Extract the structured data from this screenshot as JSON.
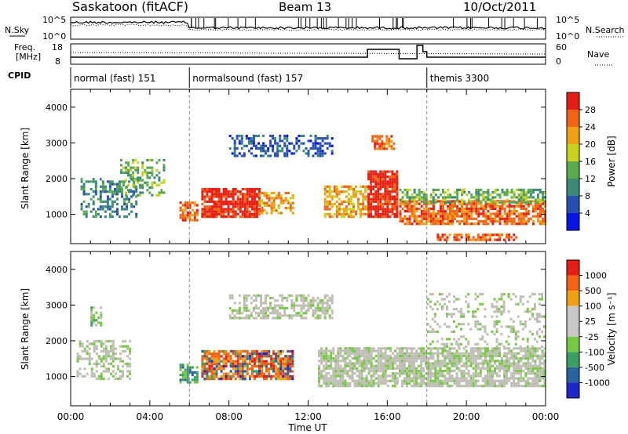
{
  "header": {
    "title": "Saskatoon (fitACF)",
    "beam": "Beam 13",
    "date": "10/Oct/2011"
  },
  "top_panels": {
    "nsky_label": "N.Sky",
    "nsky_ticks": [
      "10^5",
      "10^0"
    ],
    "nsearch_label": "N.Search",
    "nsearch_ticks": [
      "10^5",
      "10^0"
    ],
    "freq_label_1": "Freq.",
    "freq_label_2": "[MHz]",
    "freq_ticks": [
      "18",
      "8"
    ],
    "nave_label": "Nave",
    "nave_ticks": [
      "60",
      "0"
    ],
    "cpid_label": "CPID",
    "cpid_segments": [
      {
        "label": "normal (fast) 151",
        "start_hour": 0
      },
      {
        "label": "normalsound (fast) 157",
        "start_hour": 6
      },
      {
        "label": "themis 3300",
        "start_hour": 18
      }
    ]
  },
  "colors": {
    "power_scale": [
      "#0a14e6",
      "#2850b4",
      "#3c8a78",
      "#5aaa50",
      "#c8d21e",
      "#f0a014",
      "#f06414",
      "#e61e14"
    ],
    "velocity_scale": [
      "#1e28c8",
      "#2864a0",
      "#3ca064",
      "#78c846",
      "#c8c8c8",
      "#c8c8c8",
      "#f0a014",
      "#f06414",
      "#e61e14"
    ],
    "ground_scatter": "#bebeb4"
  },
  "chart_data": [
    {
      "type": "heatmap",
      "name": "power",
      "ylabel": "Slant Range [km]",
      "xlabel": "Time UT",
      "x_ticks": [
        "00:00",
        "04:00",
        "08:00",
        "12:00",
        "16:00",
        "20:00",
        "00:00"
      ],
      "xlim_hours": [
        0,
        24
      ],
      "ylim_km": [
        180,
        4500
      ],
      "y_ticks": [
        1000,
        2000,
        3000,
        4000
      ],
      "colorbar_label": "Power [dB]",
      "colorbar_ticks": [
        "28",
        "24",
        "20",
        "16",
        "12",
        "8",
        "4"
      ],
      "regions": [
        {
          "t0": 0.5,
          "t1": 3.3,
          "r0": 900,
          "r1": 2000,
          "level": 2,
          "density": 0.45
        },
        {
          "t0": 2.5,
          "t1": 4.7,
          "r0": 1500,
          "r1": 2500,
          "level": 3,
          "density": 0.4
        },
        {
          "t0": 5.5,
          "t1": 6.4,
          "r0": 800,
          "r1": 1300,
          "level": 6,
          "density": 0.7
        },
        {
          "t0": 6.6,
          "t1": 9.5,
          "r0": 900,
          "r1": 1700,
          "level": 7,
          "density": 0.85
        },
        {
          "t0": 9.5,
          "t1": 11.2,
          "r0": 1000,
          "r1": 1600,
          "level": 5,
          "density": 0.55
        },
        {
          "t0": 8.0,
          "t1": 13.2,
          "r0": 2600,
          "r1": 3200,
          "level": 1,
          "density": 0.5
        },
        {
          "t0": 12.8,
          "t1": 15.0,
          "r0": 900,
          "r1": 1800,
          "level": 5,
          "density": 0.6
        },
        {
          "t0": 15.0,
          "t1": 16.5,
          "r0": 900,
          "r1": 2200,
          "level": 7,
          "density": 0.9
        },
        {
          "t0": 15.2,
          "t1": 16.4,
          "r0": 2800,
          "r1": 3200,
          "level": 6,
          "density": 0.6
        },
        {
          "t0": 16.6,
          "t1": 24.0,
          "r0": 700,
          "r1": 1400,
          "level": 6,
          "density": 0.75
        },
        {
          "t0": 16.6,
          "t1": 24.0,
          "r0": 1300,
          "r1": 1700,
          "level": 3,
          "density": 0.55
        },
        {
          "t0": 18.5,
          "t1": 22.5,
          "r0": 250,
          "r1": 450,
          "level": 6,
          "density": 0.6
        }
      ]
    },
    {
      "type": "heatmap",
      "name": "velocity",
      "ylabel": "Slant Range [km]",
      "xlabel": "Time UT",
      "x_ticks": [
        "00:00",
        "04:00",
        "08:00",
        "12:00",
        "16:00",
        "20:00",
        "00:00"
      ],
      "xlim_hours": [
        0,
        24
      ],
      "ylim_km": [
        180,
        4500
      ],
      "y_ticks": [
        1000,
        2000,
        3000,
        4000
      ],
      "colorbar_label": "Velocity [m s⁻¹]",
      "colorbar_ticks": [
        "1000",
        "500",
        "100",
        "25",
        "-25",
        "-100",
        "-500",
        "-1000"
      ],
      "regions": [
        {
          "t0": 0.3,
          "t1": 3.0,
          "r0": 900,
          "r1": 2000,
          "level": 4,
          "density": 0.45
        },
        {
          "t0": 1.0,
          "t1": 1.5,
          "r0": 2400,
          "r1": 2900,
          "level": 3,
          "density": 0.5
        },
        {
          "t0": 5.5,
          "t1": 6.4,
          "r0": 800,
          "r1": 1300,
          "level": 2,
          "density": 0.7
        },
        {
          "t0": 6.6,
          "t1": 11.2,
          "r0": 900,
          "r1": 1700,
          "level": 7,
          "density": 0.7
        },
        {
          "t0": 6.6,
          "t1": 11.2,
          "r0": 900,
          "r1": 1700,
          "level": 1,
          "density": 0.25
        },
        {
          "t0": 8.0,
          "t1": 13.2,
          "r0": 2600,
          "r1": 3300,
          "level": 4,
          "density": 0.55
        },
        {
          "t0": 12.5,
          "t1": 24.0,
          "r0": 700,
          "r1": 1800,
          "level": 4,
          "density": 0.8
        },
        {
          "t0": 18.0,
          "t1": 24.0,
          "r0": 1800,
          "r1": 3300,
          "level": 4,
          "density": 0.25
        }
      ]
    }
  ]
}
